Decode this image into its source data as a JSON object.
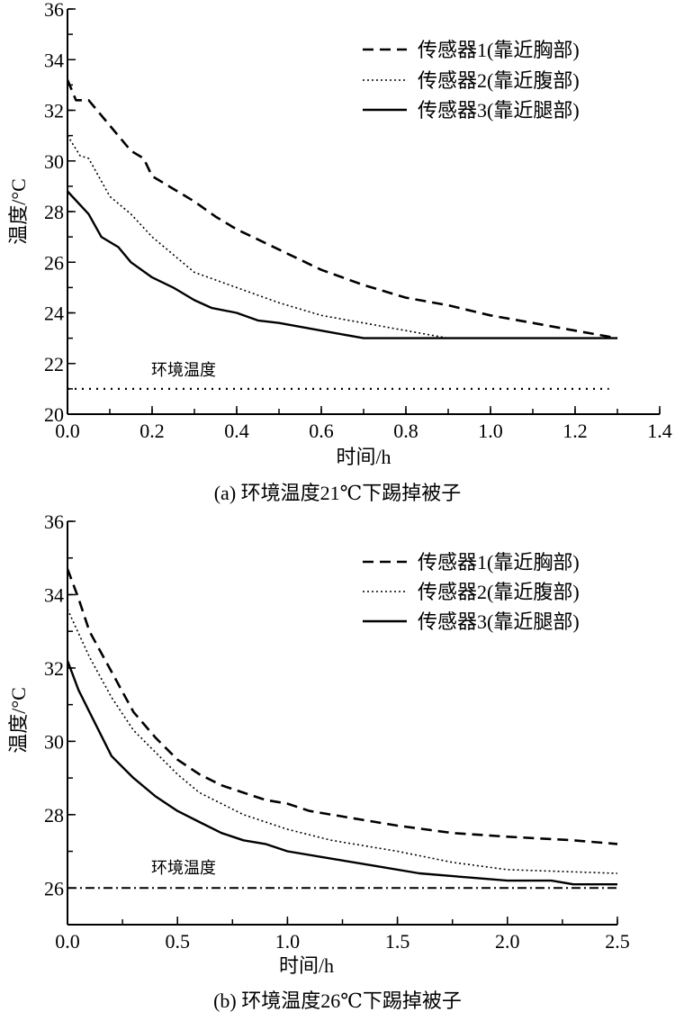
{
  "chart_data": [
    {
      "type": "line",
      "caption": "(a) 环境温度21℃下踢掉被子",
      "xlabel": "时间/h",
      "ylabel": "温度/°C",
      "xlim": [
        0,
        1.4
      ],
      "ylim": [
        20,
        36
      ],
      "xticks": [
        "0.0",
        "0.2",
        "0.4",
        "0.6",
        "0.8",
        "1.0",
        "1.2",
        "1.4"
      ],
      "yticks": [
        "20",
        "22",
        "24",
        "26",
        "28",
        "30",
        "32",
        "34",
        "36"
      ],
      "legend_position": "top-right",
      "annotation": "环境温度",
      "series": [
        {
          "name": "传感器1(靠近胸部)",
          "style": "dashed",
          "x": [
            0,
            0.02,
            0.05,
            0.1,
            0.15,
            0.18,
            0.2,
            0.25,
            0.3,
            0.35,
            0.4,
            0.5,
            0.6,
            0.7,
            0.8,
            0.9,
            1.0,
            1.1,
            1.2,
            1.3
          ],
          "y": [
            33.2,
            32.4,
            32.4,
            31.4,
            30.4,
            30.1,
            29.4,
            28.9,
            28.4,
            27.8,
            27.3,
            26.5,
            25.7,
            25.1,
            24.6,
            24.3,
            23.9,
            23.6,
            23.3,
            23.0
          ]
        },
        {
          "name": "传感器2(靠近腹部)",
          "style": "dotted",
          "x": [
            0,
            0.03,
            0.05,
            0.1,
            0.15,
            0.2,
            0.25,
            0.3,
            0.4,
            0.5,
            0.6,
            0.7,
            0.8,
            0.9,
            1.3
          ],
          "y": [
            31.0,
            30.2,
            30.1,
            28.6,
            27.9,
            27.0,
            26.3,
            25.6,
            25.0,
            24.4,
            23.9,
            23.6,
            23.3,
            23.0,
            23.0
          ]
        },
        {
          "name": "传感器3(靠近腿部)",
          "style": "solid",
          "x": [
            0,
            0.05,
            0.08,
            0.12,
            0.15,
            0.2,
            0.25,
            0.3,
            0.34,
            0.4,
            0.45,
            0.5,
            0.6,
            0.7,
            1.3
          ],
          "y": [
            28.8,
            27.9,
            27.0,
            26.6,
            26.0,
            25.4,
            25.0,
            24.5,
            24.2,
            24.0,
            23.7,
            23.6,
            23.3,
            23.0,
            23.0
          ]
        },
        {
          "name": "环境温度",
          "style": "ambient-dotted",
          "x": [
            0,
            1.28
          ],
          "y": [
            21,
            21
          ]
        }
      ]
    },
    {
      "type": "line",
      "caption": "(b) 环境温度26℃下踢掉被子",
      "xlabel": "时间/h",
      "ylabel": "温度/°C",
      "xlim": [
        0,
        2.5
      ],
      "ylim": [
        25,
        36
      ],
      "xticks": [
        "0.0",
        "0.5",
        "1.0",
        "1.5",
        "2.0",
        "2.5"
      ],
      "yticks": [
        "26",
        "28",
        "30",
        "32",
        "34",
        "36"
      ],
      "legend_position": "top-right",
      "annotation": "环境温度",
      "series": [
        {
          "name": "传感器1(靠近胸部)",
          "style": "dashed",
          "x": [
            0,
            0.05,
            0.1,
            0.2,
            0.3,
            0.4,
            0.5,
            0.6,
            0.7,
            0.8,
            0.9,
            1.0,
            1.1,
            1.3,
            1.5,
            1.75,
            2.0,
            2.3,
            2.5
          ],
          "y": [
            34.7,
            33.9,
            33.0,
            31.9,
            30.8,
            30.1,
            29.5,
            29.1,
            28.8,
            28.6,
            28.4,
            28.3,
            28.1,
            27.9,
            27.7,
            27.5,
            27.4,
            27.3,
            27.2
          ]
        },
        {
          "name": "传感器2(靠近腹部)",
          "style": "dotted",
          "x": [
            0,
            0.1,
            0.2,
            0.3,
            0.4,
            0.5,
            0.6,
            0.7,
            0.8,
            1.0,
            1.2,
            1.5,
            1.75,
            2.0,
            2.5
          ],
          "y": [
            33.6,
            32.3,
            31.2,
            30.3,
            29.7,
            29.1,
            28.6,
            28.3,
            28.0,
            27.6,
            27.3,
            27.0,
            26.7,
            26.5,
            26.4
          ]
        },
        {
          "name": "传感器3(靠近腿部)",
          "style": "solid",
          "x": [
            0,
            0.05,
            0.1,
            0.2,
            0.3,
            0.4,
            0.5,
            0.6,
            0.7,
            0.8,
            0.9,
            1.0,
            1.2,
            1.4,
            1.6,
            1.8,
            2.0,
            2.2,
            2.3,
            2.5
          ],
          "y": [
            32.2,
            31.4,
            30.8,
            29.6,
            29.0,
            28.5,
            28.1,
            27.8,
            27.5,
            27.3,
            27.2,
            27.0,
            26.8,
            26.6,
            26.4,
            26.3,
            26.2,
            26.2,
            26.1,
            26.1
          ]
        },
        {
          "name": "环境温度",
          "style": "dashdot",
          "x": [
            0,
            2.5
          ],
          "y": [
            26,
            26
          ]
        }
      ]
    }
  ]
}
